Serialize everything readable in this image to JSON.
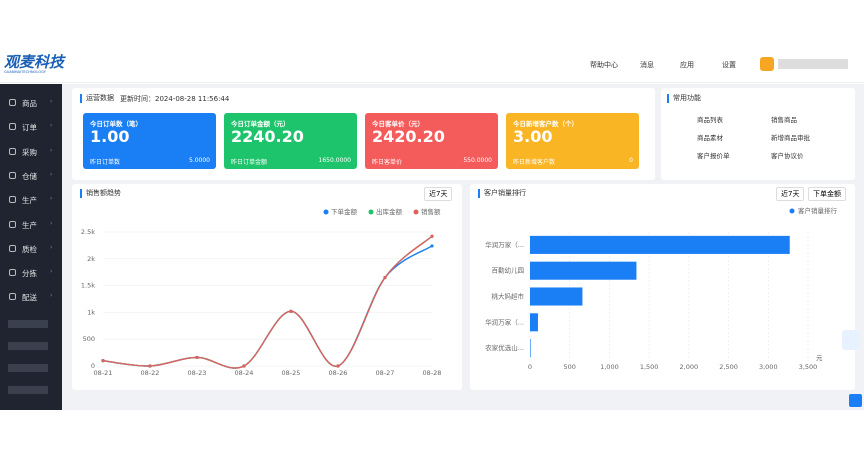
{
  "header": {
    "logo": "观麦科技",
    "logo_sub": "GUANMAITECHNOLOGY",
    "nav": [
      "帮助中心",
      "消息",
      "应用",
      "设置"
    ]
  },
  "sidebar": [
    "商品",
    "订单",
    "采购",
    "仓储",
    "生产",
    "生产",
    "质检",
    "分拣",
    "配送"
  ],
  "overview": {
    "title": "运营数据",
    "updated": "更新时间：2024-08-28 11:56:44",
    "cards": [
      {
        "title": "今日订单数（笔）",
        "value": "1.00",
        "sub_label": "昨日订单数",
        "sub_value": "5.0000",
        "color": "#1a7ef5"
      },
      {
        "title": "今日订单金额（元）",
        "value": "2240.20",
        "sub_label": "昨日订单金额",
        "sub_value": "1650.0000",
        "color": "#1ec46c"
      },
      {
        "title": "今日客单价（元）",
        "value": "2420.20",
        "sub_label": "昨日客单价",
        "sub_value": "550.0000",
        "color": "#f45b5b"
      },
      {
        "title": "今日新增客户数（个）",
        "value": "3.00",
        "sub_label": "昨日新增客户数",
        "sub_value": "0",
        "color": "#f9b523"
      }
    ]
  },
  "shortcuts": {
    "title": "常用功能",
    "items": [
      "商品列表",
      "销售商品",
      "商品素材",
      "新增商品审批",
      "客户报价单",
      "客户协议价"
    ]
  },
  "chart_data": [
    {
      "type": "line",
      "title": "销售额趋势",
      "filter": "近7天",
      "categories": [
        "08-21",
        "08-22",
        "08-23",
        "08-24",
        "08-25",
        "08-26",
        "08-27",
        "08-28"
      ],
      "series": [
        {
          "name": "下单金额",
          "color": "#1a7ef5",
          "values": [
            100,
            0,
            160,
            0,
            1020,
            0,
            1650,
            2240.2
          ]
        },
        {
          "name": "出库金额",
          "color": "#1ec46c",
          "values": [
            100,
            0,
            160,
            0,
            1020,
            0,
            1650,
            2420.2
          ]
        },
        {
          "name": "销售额",
          "color": "#e06060",
          "values": [
            100,
            0,
            160,
            0,
            1020,
            0,
            1650,
            2420.2
          ]
        }
      ],
      "ylim": [
        0,
        2500
      ],
      "yticks": [
        0,
        500,
        {
          "value": 1000,
          "label": "1k"
        },
        {
          "value": 1500,
          "label": "1.5k"
        },
        {
          "value": 2000,
          "label": "2k"
        },
        {
          "value": 2500,
          "label": "2.5k"
        }
      ],
      "grid": true,
      "legend": "top-right"
    },
    {
      "type": "bar",
      "orientation": "horizontal",
      "title": "客户销量排行",
      "filters": [
        "近7天",
        "下单金额"
      ],
      "unit": "元",
      "categories": [
        "华润万家（...",
        "百勤幼儿园",
        "桃大妈超市",
        "华润万家（...",
        "农家优选山..."
      ],
      "series": [
        {
          "name": "客户销量排行",
          "color": "#1a7ef5",
          "values": [
            3270,
            1340,
            660,
            100,
            8
          ]
        }
      ],
      "xlim": [
        0,
        3500
      ],
      "xticks": [
        0,
        500,
        {
          "value": 1000,
          "label": "1,000"
        },
        {
          "value": 1500,
          "label": "1,500"
        },
        {
          "value": 2000,
          "label": "2,000"
        },
        {
          "value": 2500,
          "label": "2,500"
        },
        {
          "value": 3000,
          "label": "3,000"
        },
        {
          "value": 3500,
          "label": "3,500"
        }
      ],
      "grid": true,
      "legend": "top-right"
    }
  ]
}
